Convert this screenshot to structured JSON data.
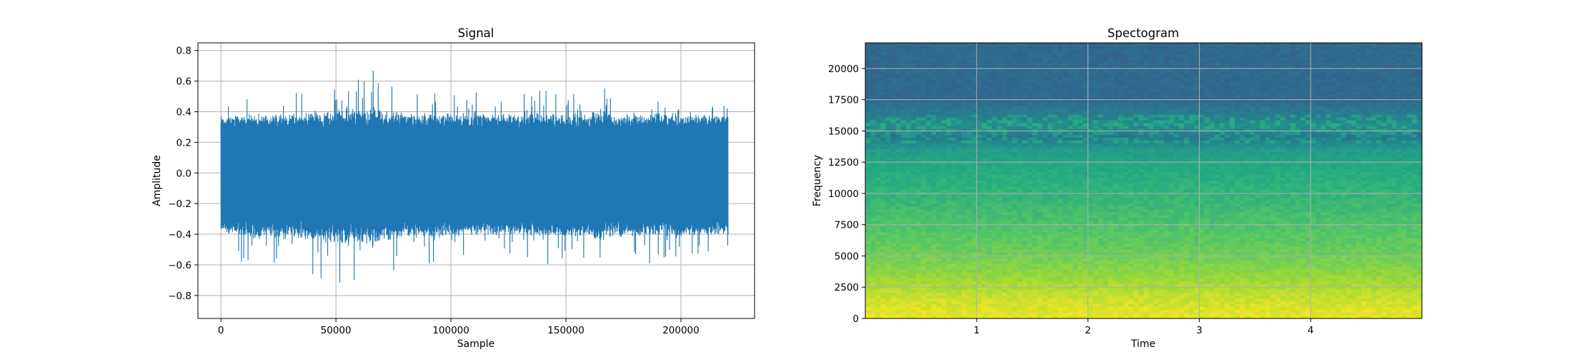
{
  "chart_data": [
    {
      "type": "line",
      "title": "Signal",
      "xlabel": "Sample",
      "ylabel": "Amplitude",
      "xlim": [
        -10000,
        232000
      ],
      "ylim": [
        -0.95,
        0.85
      ],
      "xticks": [
        0,
        50000,
        100000,
        150000,
        200000
      ],
      "xtick_labels": [
        "0",
        "50000",
        "100000",
        "150000",
        "200000"
      ],
      "yticks": [
        -0.8,
        -0.6,
        -0.4,
        -0.2,
        0.0,
        0.2,
        0.4,
        0.6,
        0.8
      ],
      "ytick_labels": [
        "−0.8",
        "−0.6",
        "−0.4",
        "−0.2",
        "0.0",
        "0.2",
        "0.4",
        "0.6",
        "0.8"
      ],
      "grid": true,
      "series": [
        {
          "color": "#1f77b4",
          "sample_range": [
            0,
            220500
          ],
          "envelope": {
            "x": [
              0,
              10000,
              20000,
              30000,
              40000,
              50000,
              55000,
              60000,
              68000,
              70000,
              80000,
              90000,
              100000,
              110000,
              120000,
              130000,
              140000,
              150000,
              160000,
              165000,
              170000,
              180000,
              190000,
              200000,
              210000,
              220000
            ],
            "upper": [
              0.5,
              0.5,
              0.5,
              0.52,
              0.6,
              0.62,
              0.73,
              0.62,
              0.75,
              0.6,
              0.55,
              0.55,
              0.52,
              0.55,
              0.5,
              0.52,
              0.55,
              0.55,
              0.5,
              0.68,
              0.5,
              0.5,
              0.55,
              0.52,
              0.5,
              0.45
            ],
            "lower": [
              -0.45,
              -0.6,
              -0.62,
              -0.6,
              -0.72,
              -0.78,
              -0.86,
              -0.72,
              -0.83,
              -0.68,
              -0.62,
              -0.6,
              -0.6,
              -0.55,
              -0.55,
              -0.55,
              -0.6,
              -0.58,
              -0.6,
              -0.66,
              -0.6,
              -0.58,
              -0.6,
              -0.6,
              -0.55,
              -0.5
            ]
          }
        }
      ]
    },
    {
      "type": "heatmap",
      "title": "Spectogram",
      "xlabel": "Time",
      "ylabel": "Frequency",
      "xlim": [
        0,
        5.0
      ],
      "ylim": [
        0,
        22050
      ],
      "xticks": [
        1,
        2,
        3,
        4
      ],
      "xtick_labels": [
        "1",
        "2",
        "3",
        "4"
      ],
      "yticks": [
        0,
        2500,
        5000,
        7500,
        10000,
        12500,
        15000,
        17500,
        20000
      ],
      "ytick_labels": [
        "0",
        "2500",
        "5000",
        "7500",
        "10000",
        "12500",
        "15000",
        "17500",
        "20000"
      ],
      "grid": true,
      "colormap": "viridis",
      "frequency_profile": {
        "frequency": [
          0,
          1500,
          2500,
          4000,
          5500,
          7500,
          10000,
          12500,
          13500,
          14500,
          15500,
          16000,
          17500,
          22050
        ],
        "level": [
          0.97,
          0.93,
          0.88,
          0.82,
          0.77,
          0.72,
          0.66,
          0.6,
          0.55,
          0.4,
          0.5,
          0.45,
          0.35,
          0.35
        ]
      }
    }
  ]
}
